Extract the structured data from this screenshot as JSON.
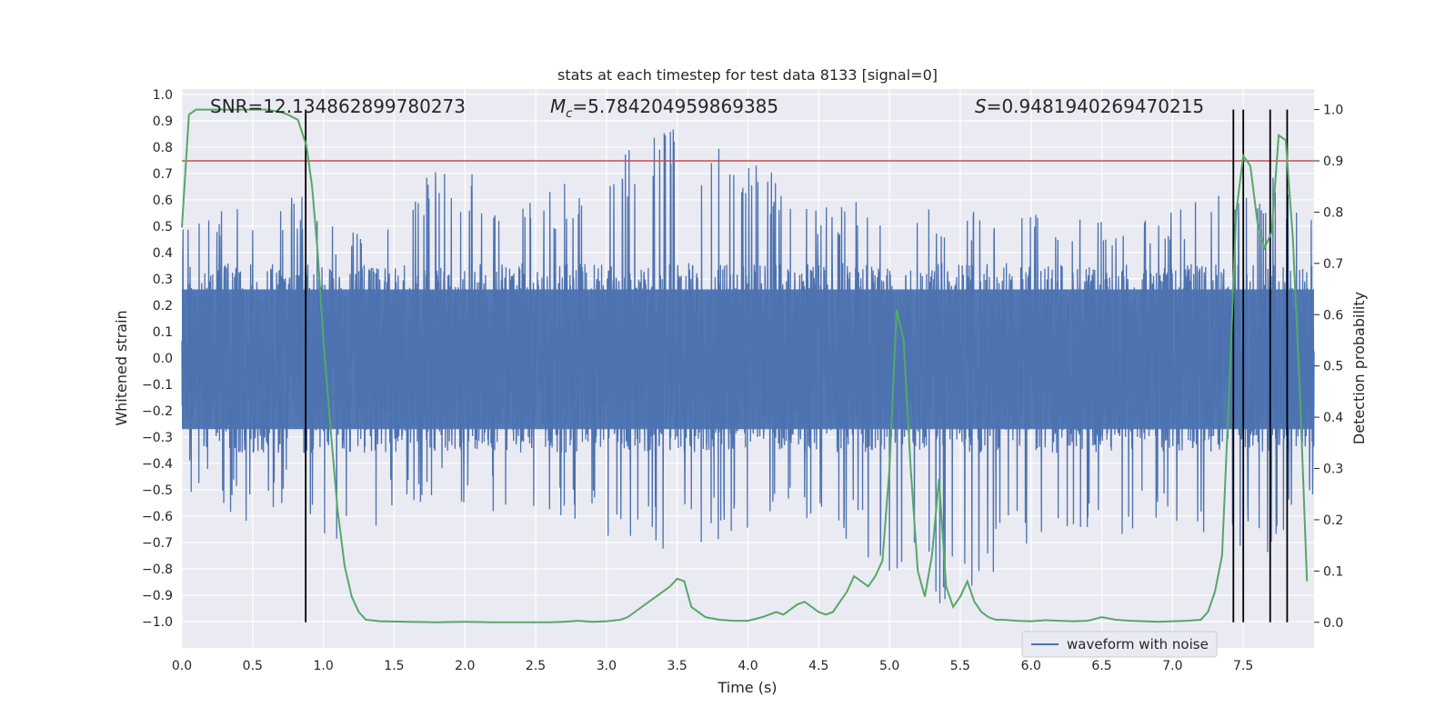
{
  "chart_data": {
    "type": "line",
    "title": "stats at each timestep for test data 8133 [signal=0]",
    "xlabel": "Time (s)",
    "ylabel": "Whitened strain",
    "ylabel_right": "Detection probability",
    "xlim": [
      0.0,
      8.0
    ],
    "ylim": [
      -1.1,
      1.02
    ],
    "ylim_right": [
      -0.05,
      1.04
    ],
    "x_ticks": [
      "0.0",
      "0.5",
      "1.0",
      "1.5",
      "2.0",
      "2.5",
      "3.0",
      "3.5",
      "4.0",
      "4.5",
      "5.0",
      "5.5",
      "6.0",
      "6.5",
      "7.0",
      "7.5"
    ],
    "y_ticks": [
      "1.0",
      "0.9",
      "0.8",
      "0.7",
      "0.6",
      "0.5",
      "0.4",
      "0.3",
      "0.2",
      "0.1",
      "0.0",
      "−0.1",
      "−0.2",
      "−0.3",
      "−0.4",
      "−0.5",
      "−0.6",
      "−0.7",
      "−0.8",
      "−0.9",
      "−1.0"
    ],
    "y_ticks_right": [
      "1.0",
      "0.9",
      "0.8",
      "0.7",
      "0.6",
      "0.5",
      "0.4",
      "0.3",
      "0.2",
      "0.1",
      "0.0"
    ],
    "grid": true,
    "legend": {
      "position": "lower-right",
      "entries": [
        "waveform with noise"
      ]
    },
    "annotations": {
      "snr": "SNR=12.134862899780273",
      "mc_symbol": "M",
      "mc_sub": "c",
      "mc_value": "=5.784204959869385",
      "s_symbol": "S",
      "s_value": "=0.9481940269470215"
    },
    "threshold": {
      "value": 0.9,
      "axis": "right",
      "color": "#c44e52"
    },
    "detection_lines_x": [
      0.875,
      7.43,
      7.5,
      7.69,
      7.81
    ],
    "series": [
      {
        "name": "waveform with noise",
        "axis": "left",
        "color": "#4c72b0",
        "envelope_points": [
          {
            "x": 0.0,
            "min": -0.5,
            "max": 0.5
          },
          {
            "x": 0.2,
            "min": -0.55,
            "max": 0.62
          },
          {
            "x": 0.55,
            "min": -0.68,
            "max": 0.6
          },
          {
            "x": 0.8,
            "min": -0.52,
            "max": 0.65
          },
          {
            "x": 1.02,
            "min": -0.77,
            "max": 0.5
          },
          {
            "x": 1.5,
            "min": -0.6,
            "max": 0.58
          },
          {
            "x": 1.8,
            "min": -0.55,
            "max": 0.76
          },
          {
            "x": 2.5,
            "min": -0.62,
            "max": 0.6
          },
          {
            "x": 3.51,
            "min": -0.74,
            "max": 0.92
          },
          {
            "x": 4.5,
            "min": -0.6,
            "max": 0.6
          },
          {
            "x": 5.35,
            "min": -1.0,
            "max": 0.58
          },
          {
            "x": 5.9,
            "min": -0.76,
            "max": 0.58
          },
          {
            "x": 7.0,
            "min": -0.64,
            "max": 0.56
          },
          {
            "x": 7.73,
            "min": -0.76,
            "max": 0.72
          },
          {
            "x": 7.95,
            "min": -0.55,
            "max": 0.55
          }
        ]
      },
      {
        "name": "detection probability",
        "axis": "right",
        "color": "#55a868",
        "x": [
          0.0,
          0.05,
          0.1,
          0.2,
          0.3,
          0.4,
          0.5,
          0.6,
          0.7,
          0.75,
          0.82,
          0.88,
          0.92,
          0.96,
          1.0,
          1.05,
          1.1,
          1.15,
          1.2,
          1.25,
          1.3,
          1.4,
          1.6,
          1.8,
          2.0,
          2.2,
          2.4,
          2.6,
          2.7,
          2.8,
          2.9,
          3.0,
          3.1,
          3.15,
          3.2,
          3.3,
          3.4,
          3.45,
          3.5,
          3.55,
          3.6,
          3.7,
          3.8,
          3.9,
          4.0,
          4.1,
          4.15,
          4.2,
          4.25,
          4.3,
          4.35,
          4.4,
          4.45,
          4.5,
          4.55,
          4.6,
          4.65,
          4.7,
          4.75,
          4.8,
          4.85,
          4.9,
          4.95,
          5.0,
          5.05,
          5.1,
          5.15,
          5.2,
          5.25,
          5.3,
          5.35,
          5.4,
          5.45,
          5.5,
          5.55,
          5.6,
          5.65,
          5.7,
          5.75,
          5.8,
          5.9,
          6.0,
          6.1,
          6.2,
          6.3,
          6.4,
          6.5,
          6.6,
          6.7,
          6.8,
          6.9,
          7.0,
          7.1,
          7.2,
          7.25,
          7.3,
          7.35,
          7.4,
          7.45,
          7.5,
          7.55,
          7.6,
          7.65,
          7.7,
          7.75,
          7.8,
          7.85,
          7.9,
          7.95
        ],
        "y": [
          0.77,
          0.99,
          1.0,
          1.0,
          1.0,
          1.0,
          1.0,
          1.0,
          0.995,
          0.99,
          0.98,
          0.93,
          0.85,
          0.72,
          0.55,
          0.38,
          0.22,
          0.11,
          0.05,
          0.02,
          0.005,
          0.002,
          0.001,
          0.0,
          0.001,
          0.0,
          0.0,
          0.0,
          0.001,
          0.003,
          0.001,
          0.002,
          0.005,
          0.01,
          0.02,
          0.04,
          0.06,
          0.07,
          0.085,
          0.08,
          0.03,
          0.01,
          0.005,
          0.003,
          0.003,
          0.01,
          0.015,
          0.02,
          0.015,
          0.025,
          0.035,
          0.04,
          0.03,
          0.02,
          0.015,
          0.02,
          0.04,
          0.06,
          0.09,
          0.08,
          0.07,
          0.09,
          0.12,
          0.3,
          0.61,
          0.55,
          0.3,
          0.1,
          0.05,
          0.13,
          0.28,
          0.07,
          0.03,
          0.05,
          0.08,
          0.04,
          0.02,
          0.01,
          0.005,
          0.005,
          0.003,
          0.002,
          0.004,
          0.003,
          0.002,
          0.003,
          0.01,
          0.005,
          0.003,
          0.002,
          0.001,
          0.002,
          0.003,
          0.005,
          0.02,
          0.06,
          0.13,
          0.45,
          0.8,
          0.91,
          0.89,
          0.78,
          0.73,
          0.76,
          0.95,
          0.94,
          0.75,
          0.45,
          0.08
        ]
      }
    ]
  }
}
